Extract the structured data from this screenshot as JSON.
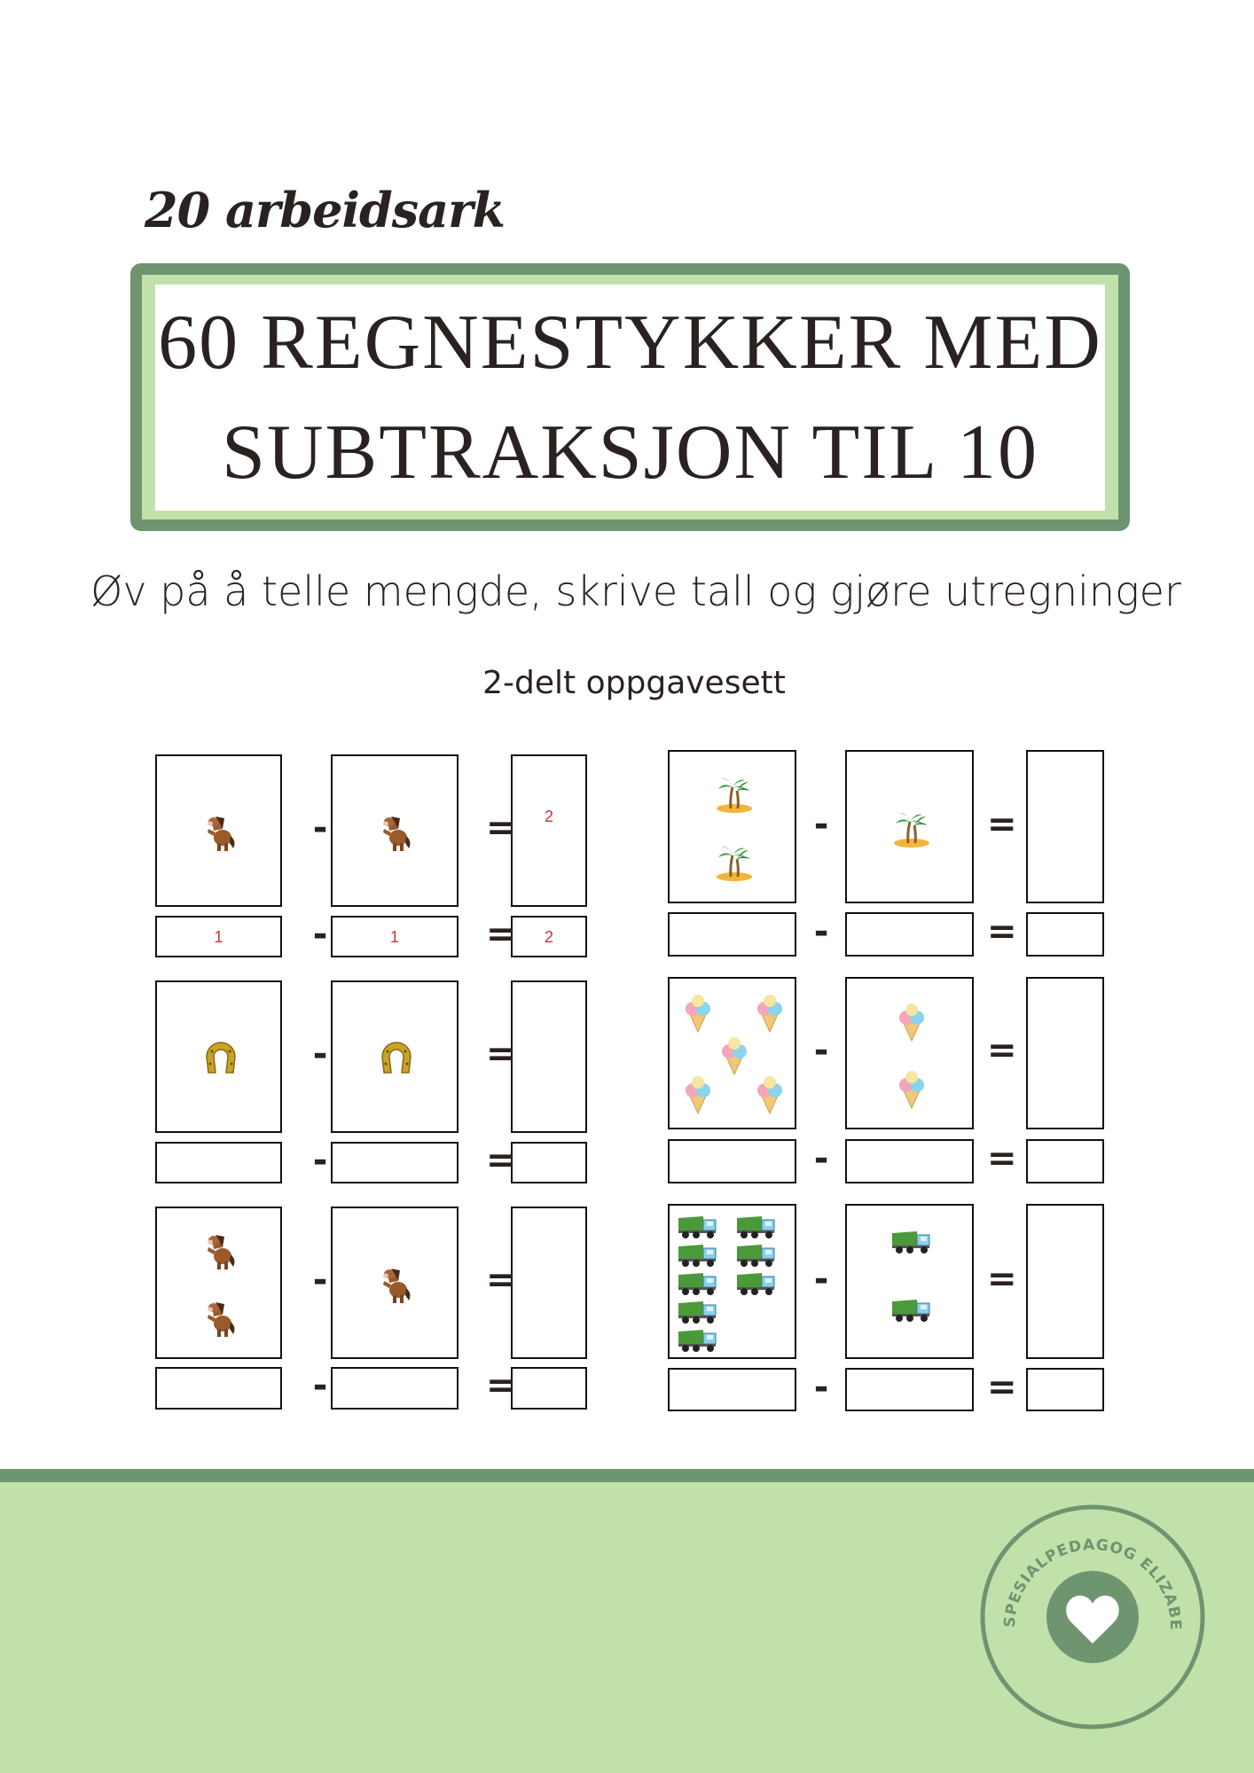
{
  "kicker": "20 arbeidsark",
  "title": {
    "line1": "60 REGNESTYKKER MED",
    "line2": "SUBTRAKSJON TIL 10"
  },
  "subtitle": "Øv på å telle mengde, skrive tall og gjøre utregninger",
  "set_label": "2-delt oppgavesett",
  "operators": {
    "minus": "-",
    "equals": "="
  },
  "colors": {
    "dark_green": "#6e9470",
    "light_green": "#c0e2aa",
    "answer_red": "#c8323c"
  },
  "problems": [
    {
      "icon": "horse-icon",
      "left_count": 1,
      "right_count": 1,
      "answer_picture": "2",
      "answer_left": "1",
      "answer_right": "1",
      "answer_result": "2"
    },
    {
      "icon": "horseshoe-icon",
      "left_count": 1,
      "right_count": 1
    },
    {
      "icon": "horse-icon",
      "left_count": 2,
      "right_count": 1
    },
    {
      "icon": "palm-island-icon",
      "left_count": 2,
      "right_count": 1
    },
    {
      "icon": "ice-cream-icon",
      "left_count": 5,
      "right_count": 2
    },
    {
      "icon": "dump-truck-icon",
      "left_count": 8,
      "right_count": 2
    }
  ],
  "badge": {
    "text": "SPESIALPEDAGOG ELIZABETH",
    "icon": "heart-icon"
  }
}
